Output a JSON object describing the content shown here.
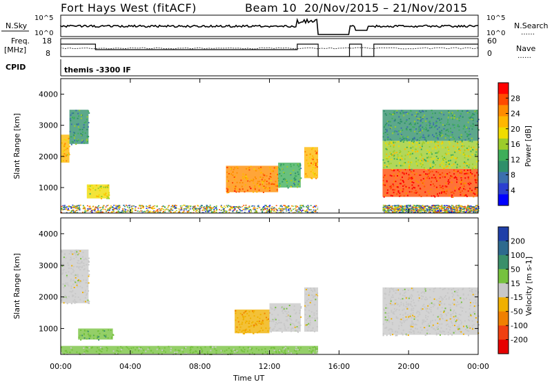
{
  "header": {
    "title": "Fort Hays West (fitACF)",
    "beam": "Beam 10",
    "date_range": "20/Nov/2015 – 21/Nov/2015"
  },
  "summary": {
    "nsky_label": "N.Sky",
    "nsky_ticks": [
      "10^5",
      "10^0"
    ],
    "nsearch_label": "N.Search",
    "freq_label": "Freq.",
    "freq_unit": "[MHz]",
    "freq_ticks": [
      "18",
      "8"
    ],
    "nave_label": "Nave",
    "nave_ticks": [
      "60",
      "0"
    ],
    "cpid_label": "CPID",
    "cpid_text": "themis -3300 IF"
  },
  "power_panel": {
    "ylabel": "Slant Range [km]",
    "cbar_label": "Power [dB]",
    "cbar_ticks": [
      "28",
      "24",
      "20",
      "16",
      "12",
      "8",
      "4"
    ],
    "cbar_colors": [
      "#ff0000",
      "#ff4a00",
      "#ff8c00",
      "#ffb700",
      "#f0dc00",
      "#9ccc2a",
      "#3fae5a",
      "#2f8f6a",
      "#3c6fae",
      "#2b3fd0",
      "#0000ff"
    ]
  },
  "velocity_panel": {
    "ylabel": "Slant Range [km]",
    "cbar_label": "Velocity [m s-1]",
    "cbar_ticks": [
      "200",
      "100",
      "50",
      "15",
      "-15",
      "-50",
      "-100",
      "-200"
    ],
    "cbar_colors": [
      "#1f3fa8",
      "#2d6a8e",
      "#3a8f6a",
      "#76c13e",
      "#c8c8c8",
      "#f0b000",
      "#f08000",
      "#f04010",
      "#e60000"
    ]
  },
  "x_axis": {
    "label": "Time UT",
    "ticks": [
      "00:00",
      "04:00",
      "08:00",
      "12:00",
      "16:00",
      "20:00",
      "00:00"
    ]
  },
  "chart_data": [
    {
      "type": "heatmap",
      "title": "Power",
      "xlabel": "Time UT",
      "ylabel": "Slant Range [km]",
      "xlim": [
        0,
        24
      ],
      "ylim": [
        180,
        4500
      ],
      "yticks": [
        1000,
        2000,
        3000,
        4000
      ],
      "colorbar": {
        "label": "Power [dB]",
        "range": [
          0,
          30
        ]
      },
      "data_gaps_hours": [
        [
          14.8,
          16.6
        ],
        [
          16.9,
          17.7
        ],
        [
          18.05,
          18.5
        ]
      ],
      "echo_regions": [
        {
          "time_h": [
            0.0,
            0.5
          ],
          "range_km": [
            1800,
            2700
          ],
          "power_db": 20
        },
        {
          "time_h": [
            0.5,
            1.6
          ],
          "range_km": [
            2400,
            3500
          ],
          "power_db": 10
        },
        {
          "time_h": [
            1.5,
            2.8
          ],
          "range_km": [
            650,
            1100
          ],
          "power_db": 18
        },
        {
          "time_h": [
            9.5,
            12.5
          ],
          "range_km": [
            850,
            1700
          ],
          "power_db": 24
        },
        {
          "time_h": [
            12.5,
            13.8
          ],
          "range_km": [
            1000,
            1800
          ],
          "power_db": 12
        },
        {
          "time_h": [
            14.0,
            14.8
          ],
          "range_km": [
            1300,
            2300
          ],
          "power_db": 22
        },
        {
          "time_h": [
            18.5,
            24.0
          ],
          "range_km": [
            700,
            1600
          ],
          "power_db": 28
        },
        {
          "time_h": [
            18.5,
            24.0
          ],
          "range_km": [
            1600,
            2500
          ],
          "power_db": 16
        },
        {
          "time_h": [
            18.5,
            24.0
          ],
          "range_km": [
            2500,
            3500
          ],
          "power_db": 10
        }
      ]
    },
    {
      "type": "heatmap",
      "title": "Velocity",
      "xlabel": "Time UT",
      "ylabel": "Slant Range [km]",
      "xlim": [
        0,
        24
      ],
      "ylim": [
        180,
        4500
      ],
      "yticks": [
        1000,
        2000,
        3000,
        4000
      ],
      "colorbar": {
        "label": "Velocity [m s-1]",
        "range": [
          -200,
          200
        ]
      },
      "data_gaps_hours": [
        [
          14.8,
          16.6
        ],
        [
          16.9,
          17.7
        ],
        [
          18.05,
          18.5
        ]
      ],
      "echo_regions": [
        {
          "time_h": [
            0.0,
            1.6
          ],
          "range_km": [
            1800,
            3500
          ],
          "velocity": 0
        },
        {
          "time_h": [
            1.0,
            3.0
          ],
          "range_km": [
            650,
            1000
          ],
          "velocity": 60
        },
        {
          "time_h": [
            10.0,
            12.0
          ],
          "range_km": [
            850,
            1600
          ],
          "velocity": -60
        },
        {
          "time_h": [
            12.0,
            13.8
          ],
          "range_km": [
            900,
            1800
          ],
          "velocity": 0
        },
        {
          "time_h": [
            14.0,
            14.8
          ],
          "range_km": [
            900,
            2300
          ],
          "velocity": 0
        },
        {
          "time_h": [
            18.5,
            24.0
          ],
          "range_km": [
            800,
            2300
          ],
          "velocity": 0
        },
        {
          "time_h": [
            0.0,
            14.8
          ],
          "range_km": [
            200,
            450
          ],
          "velocity": 40
        }
      ]
    }
  ]
}
